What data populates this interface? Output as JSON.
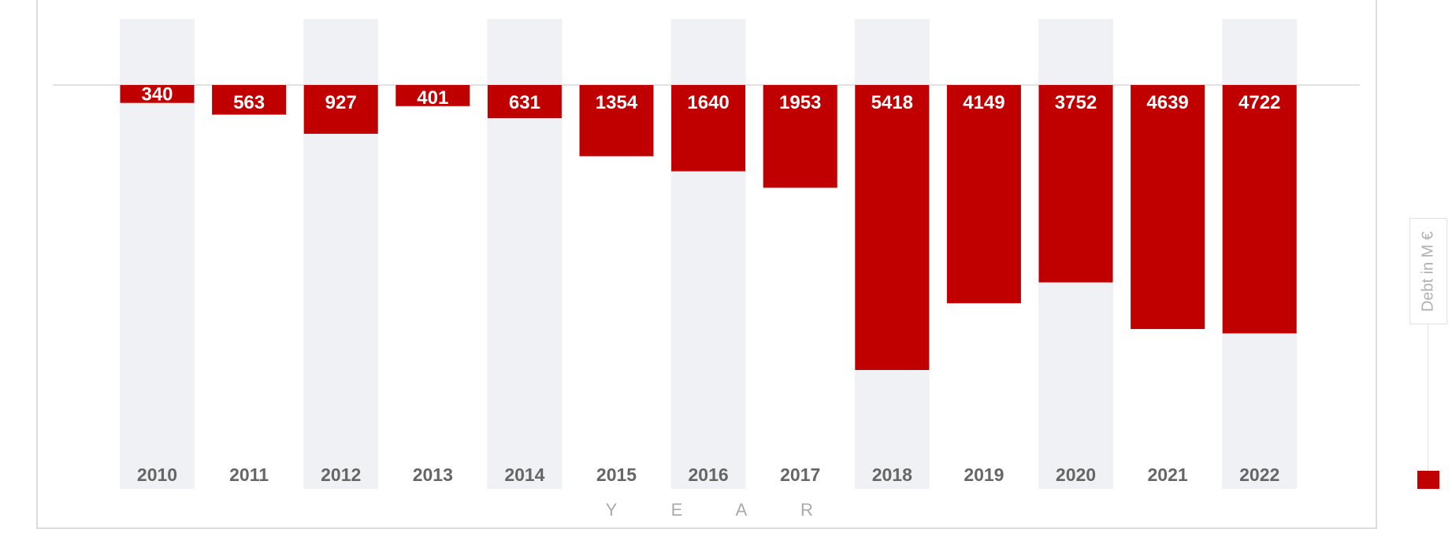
{
  "chart_data": {
    "type": "bar",
    "orientation": "vertical-downward",
    "categories": [
      "2010",
      "2011",
      "2012",
      "2013",
      "2014",
      "2015",
      "2016",
      "2017",
      "2018",
      "2019",
      "2020",
      "2021",
      "2022"
    ],
    "values": [
      340,
      563,
      927,
      401,
      631,
      1354,
      1640,
      1953,
      5418,
      4149,
      3752,
      4639,
      4722
    ],
    "data_labels": [
      "340",
      "563",
      "927",
      "401",
      "631",
      "1354",
      "1640",
      "1953",
      "5418",
      "4149",
      "3752",
      "4639",
      "4722"
    ],
    "xlabel": "YEAR",
    "xlabel_letters": [
      "Y",
      "E",
      "A",
      "R"
    ],
    "legend": {
      "title": "Debt in M €",
      "placement": "right"
    },
    "grid": false,
    "alternating_column_bands": true,
    "colors": {
      "bar": "#c00000",
      "band": "#f0f1f4",
      "baseline": "#d9d9d9",
      "category_text": "#666666",
      "axis_title_text": "#aaaaaa",
      "bar_label_text": "#ffffff"
    }
  }
}
